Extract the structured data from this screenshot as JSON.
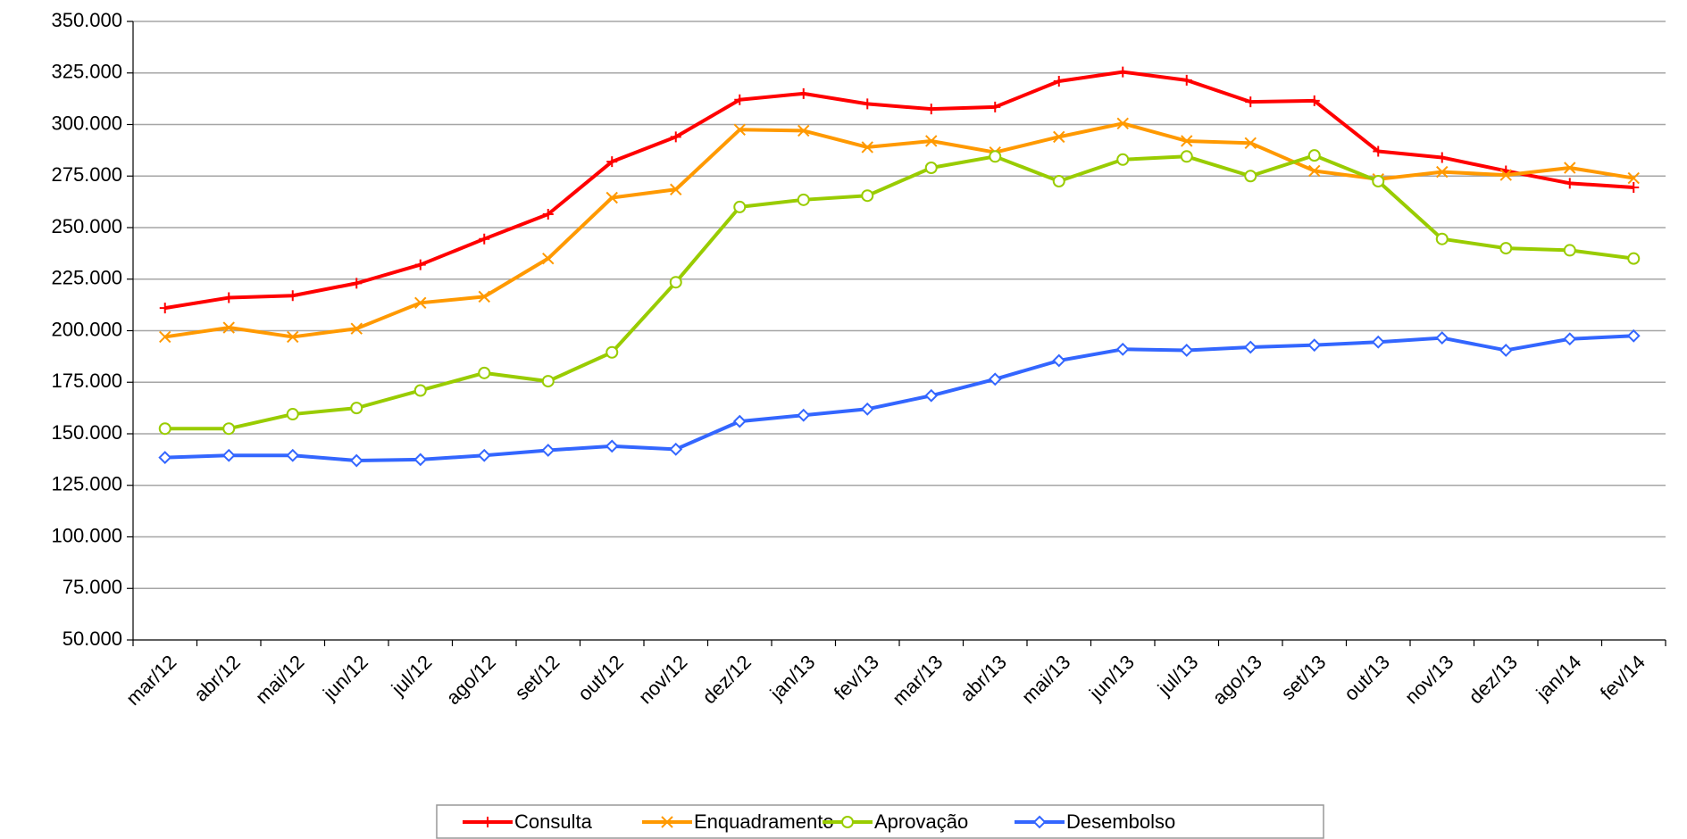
{
  "chart_data": {
    "type": "line",
    "categories": [
      "mar/12",
      "abr/12",
      "mai/12",
      "jun/12",
      "jul/12",
      "ago/12",
      "set/12",
      "out/12",
      "nov/12",
      "dez/12",
      "jan/13",
      "fev/13",
      "mar/13",
      "abr/13",
      "mai/13",
      "jun/13",
      "jul/13",
      "ago/13",
      "set/13",
      "out/13",
      "nov/13",
      "dez/13",
      "jan/14",
      "fev/14"
    ],
    "series": [
      {
        "name": "Consulta",
        "color": "#ff0000",
        "marker": "plus",
        "values": [
          211000,
          216000,
          217000,
          223000,
          232000,
          244500,
          256500,
          282000,
          294000,
          312000,
          315000,
          310000,
          307500,
          308500,
          321000,
          325500,
          321500,
          311000,
          311500,
          287000,
          284000,
          277500,
          271500,
          269500
        ]
      },
      {
        "name": "Enquadramento",
        "color": "#ff9900",
        "marker": "cross",
        "values": [
          197000,
          201500,
          197000,
          201000,
          213500,
          216500,
          235000,
          264500,
          268500,
          297500,
          297000,
          289000,
          292000,
          286500,
          294000,
          300500,
          292000,
          291000,
          277500,
          273500,
          277000,
          275500,
          279000,
          274000
        ]
      },
      {
        "name": "Aprovação",
        "color": "#99cc00",
        "marker": "circle",
        "values": [
          152500,
          152500,
          159500,
          162500,
          171000,
          179500,
          175500,
          189500,
          223500,
          260000,
          263500,
          265500,
          279000,
          284500,
          272500,
          283000,
          284500,
          275000,
          285000,
          272500,
          244500,
          240000,
          239000,
          235000
        ]
      },
      {
        "name": "Desembolso",
        "color": "#3366ff",
        "marker": "diamond",
        "values": [
          138500,
          139500,
          139500,
          137000,
          137500,
          139500,
          142000,
          144000,
          142500,
          156000,
          159000,
          162000,
          168500,
          176500,
          185500,
          191000,
          190500,
          192000,
          193000,
          194500,
          196500,
          190500,
          196000,
          197500
        ]
      }
    ],
    "ylim": [
      50000,
      350000
    ],
    "yticks": [
      {
        "value": 50000,
        "label": "50.000"
      },
      {
        "value": 75000,
        "label": "75.000"
      },
      {
        "value": 100000,
        "label": "100.000"
      },
      {
        "value": 125000,
        "label": "125.000"
      },
      {
        "value": 150000,
        "label": "150.000"
      },
      {
        "value": 175000,
        "label": "175.000"
      },
      {
        "value": 200000,
        "label": "200.000"
      },
      {
        "value": 225000,
        "label": "225.000"
      },
      {
        "value": 250000,
        "label": "250.000"
      },
      {
        "value": 275000,
        "label": "275.000"
      },
      {
        "value": 300000,
        "label": "300.000"
      },
      {
        "value": 325000,
        "label": "325.000"
      },
      {
        "value": 350000,
        "label": "350.000"
      }
    ],
    "grid": true,
    "legend": "bottom"
  }
}
